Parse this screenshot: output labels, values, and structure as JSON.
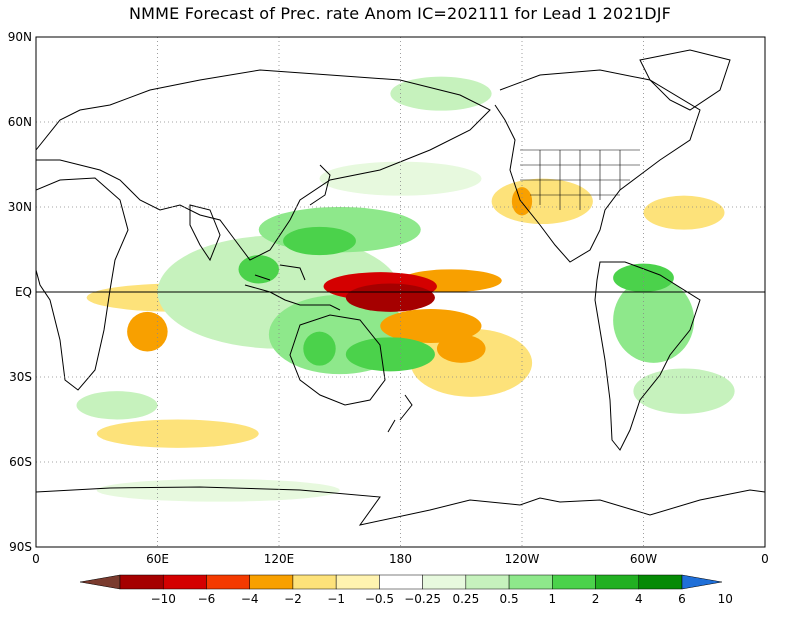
{
  "title": "NMME Forecast of Prec. rate Anom IC=202111 for Lead 1 2021DJF",
  "axes": {
    "lat_labels": [
      "90N",
      "60N",
      "30N",
      "EQ",
      "30S",
      "60S",
      "90S"
    ],
    "lon_labels": [
      "0",
      "60E",
      "120E",
      "180",
      "120W",
      "60W",
      "0"
    ]
  },
  "colorbar": {
    "labels": [
      "-10",
      "-6",
      "-4",
      "-2",
      "-1",
      "-0.5",
      "-0.25",
      "0.25",
      "0.5",
      "1",
      "2",
      "4",
      "6",
      "10"
    ],
    "colors": [
      "#7a3b2e",
      "#a50000",
      "#d40000",
      "#f43a00",
      "#f8a000",
      "#fde27a",
      "#fff3b0",
      "#ffffff",
      "#e7f9de",
      "#c6f2bd",
      "#8ee88b",
      "#4bd24b",
      "#22b022",
      "#058a05",
      "#1f6fd8"
    ]
  },
  "map": {
    "lon_range": [
      0,
      360
    ],
    "lat_range": [
      -90,
      90
    ],
    "grid": true,
    "patches": [
      {
        "type": "dry",
        "level": "strong",
        "color": "#a50000",
        "lon": 175,
        "lat": -2,
        "rx": 22,
        "ry": 5
      },
      {
        "type": "dry",
        "level": "moderate",
        "color": "#d40000",
        "lon": 170,
        "lat": 2,
        "rx": 28,
        "ry": 5
      },
      {
        "type": "dry",
        "level": "weak",
        "color": "#f8a000",
        "lon": 195,
        "lat": -12,
        "rx": 25,
        "ry": 6
      },
      {
        "type": "dry",
        "level": "weak",
        "color": "#f8a000",
        "lon": 210,
        "lat": -20,
        "rx": 12,
        "ry": 5
      },
      {
        "type": "dry",
        "level": "weak",
        "color": "#f8a000",
        "lon": 205,
        "lat": 4,
        "rx": 25,
        "ry": 4
      },
      {
        "type": "dry",
        "level": "weak",
        "color": "#f8a000",
        "lon": 55,
        "lat": -14,
        "rx": 10,
        "ry": 7
      },
      {
        "type": "dry",
        "level": "weak",
        "color": "#f8a000",
        "lon": 240,
        "lat": 32,
        "rx": 5,
        "ry": 5
      },
      {
        "type": "dry",
        "level": "faint",
        "color": "#fde27a",
        "lon": 70,
        "lat": -2,
        "rx": 45,
        "ry": 5
      },
      {
        "type": "dry",
        "level": "faint",
        "color": "#fde27a",
        "lon": 70,
        "lat": -50,
        "rx": 40,
        "ry": 5
      },
      {
        "type": "dry",
        "level": "faint",
        "color": "#fde27a",
        "lon": 250,
        "lat": 32,
        "rx": 25,
        "ry": 8
      },
      {
        "type": "dry",
        "level": "faint",
        "color": "#fde27a",
        "lon": 215,
        "lat": -25,
        "rx": 30,
        "ry": 12
      },
      {
        "type": "dry",
        "level": "faint",
        "color": "#fde27a",
        "lon": 320,
        "lat": 28,
        "rx": 20,
        "ry": 6
      },
      {
        "type": "wet",
        "level": "moderate",
        "color": "#4bd24b",
        "lon": 140,
        "lat": -20,
        "rx": 8,
        "ry": 6
      },
      {
        "type": "wet",
        "level": "moderate",
        "color": "#4bd24b",
        "lon": 175,
        "lat": -22,
        "rx": 22,
        "ry": 6
      },
      {
        "type": "wet",
        "level": "moderate",
        "color": "#4bd24b",
        "lon": 140,
        "lat": 18,
        "rx": 18,
        "ry": 5
      },
      {
        "type": "wet",
        "level": "moderate",
        "color": "#4bd24b",
        "lon": 110,
        "lat": 8,
        "rx": 10,
        "ry": 5
      },
      {
        "type": "wet",
        "level": "moderate",
        "color": "#4bd24b",
        "lon": 300,
        "lat": 5,
        "rx": 15,
        "ry": 5
      },
      {
        "type": "wet",
        "level": "light",
        "color": "#8ee88b",
        "lon": 150,
        "lat": 22,
        "rx": 40,
        "ry": 8
      },
      {
        "type": "wet",
        "level": "light",
        "color": "#8ee88b",
        "lon": 150,
        "lat": -15,
        "rx": 35,
        "ry": 14
      },
      {
        "type": "wet",
        "level": "light",
        "color": "#8ee88b",
        "lon": 305,
        "lat": -10,
        "rx": 20,
        "ry": 15
      },
      {
        "type": "wet",
        "level": "faint",
        "color": "#c6f2bd",
        "lon": 120,
        "lat": -5,
        "rx": 30,
        "ry": 12
      },
      {
        "type": "wet",
        "level": "faint",
        "color": "#c6f2bd",
        "lon": 120,
        "lat": 0,
        "rx": 60,
        "ry": 20
      },
      {
        "type": "wet",
        "level": "faint",
        "color": "#c6f2bd",
        "lon": 40,
        "lat": -40,
        "rx": 20,
        "ry": 5
      },
      {
        "type": "wet",
        "level": "faint",
        "color": "#c6f2bd",
        "lon": 200,
        "lat": 70,
        "rx": 25,
        "ry": 6
      },
      {
        "type": "wet",
        "level": "faint",
        "color": "#c6f2bd",
        "lon": 320,
        "lat": -35,
        "rx": 25,
        "ry": 8
      },
      {
        "type": "wet",
        "level": "faint",
        "color": "#e7f9de",
        "lon": 180,
        "lat": 40,
        "rx": 40,
        "ry": 6
      },
      {
        "type": "wet",
        "level": "faint",
        "color": "#e7f9de",
        "lon": 90,
        "lat": -70,
        "rx": 60,
        "ry": 4
      }
    ]
  }
}
